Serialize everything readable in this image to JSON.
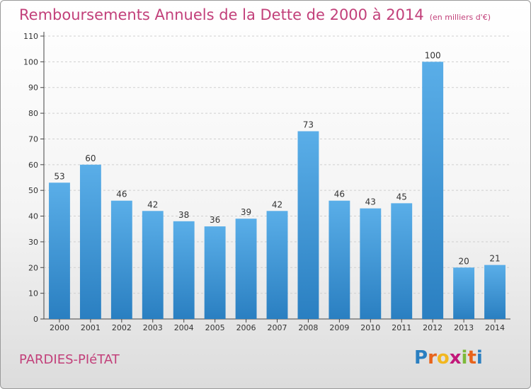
{
  "header": {
    "title": "Remboursements Annuels de la Dette de 2000 à 2014",
    "unit": "(en milliers d'€)"
  },
  "footer": {
    "commune": "PARDIES-PIéTAT",
    "logo": "Proxiti",
    "logo_letters": [
      {
        "ch": "P",
        "color": "#2a7fc1"
      },
      {
        "ch": "r",
        "color": "#e8641c"
      },
      {
        "ch": "o",
        "color": "#f2b71f"
      },
      {
        "ch": "x",
        "color": "#c2187a"
      },
      {
        "ch": "i",
        "color": "#7cb93a"
      },
      {
        "ch": "t",
        "color": "#e8641c"
      },
      {
        "ch": "i",
        "color": "#2a7fc1"
      }
    ]
  },
  "colors": {
    "accent": "#c2407a",
    "bar_top": "#5aaee8",
    "bar_bottom": "#2a7fc1",
    "axis": "#444444"
  },
  "chart_data": {
    "type": "bar",
    "title": "Remboursements Annuels de la Dette de 2000 à 2014",
    "xlabel": "",
    "ylabel": "",
    "categories": [
      "2000",
      "2001",
      "2002",
      "2003",
      "2004",
      "2005",
      "2006",
      "2007",
      "2008",
      "2009",
      "2010",
      "2011",
      "2012",
      "2013",
      "2014"
    ],
    "values": [
      53,
      60,
      46,
      42,
      38,
      36,
      39,
      42,
      73,
      46,
      43,
      45,
      100,
      20,
      21
    ],
    "ylim": [
      0,
      110
    ],
    "yticks": [
      0,
      10,
      20,
      30,
      40,
      50,
      60,
      70,
      80,
      90,
      100,
      110
    ],
    "grid": true,
    "legend": "none",
    "data_labels": true
  }
}
